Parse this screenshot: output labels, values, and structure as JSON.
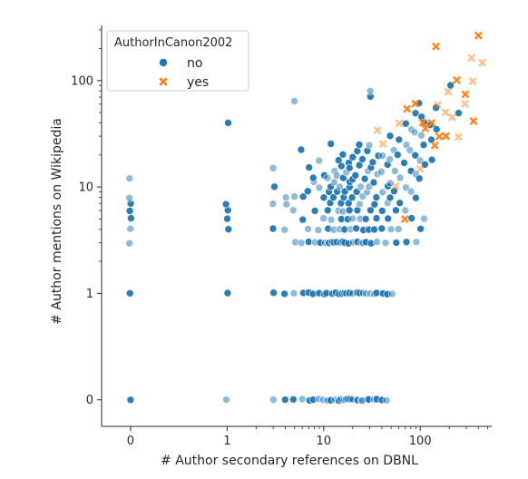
{
  "chart_data": {
    "type": "scatter",
    "title": "",
    "xlabel": "# Author secondary references on DBNL",
    "ylabel": "# Author mentions on Wikipedia",
    "xscale": "symlog",
    "yscale": "symlog",
    "xlim": [
      -0.3,
      550
    ],
    "ylim": [
      -0.25,
      330
    ],
    "x_ticks": [
      {
        "value": 0,
        "label": "0"
      },
      {
        "value": 1,
        "label": "1"
      },
      {
        "value": 10,
        "label": "10"
      },
      {
        "value": 100,
        "label": "100"
      }
    ],
    "y_ticks": [
      {
        "value": 0,
        "label": "0"
      },
      {
        "value": 1,
        "label": "1"
      },
      {
        "value": 10,
        "label": "10"
      },
      {
        "value": 100,
        "label": "100"
      }
    ],
    "grid": false,
    "legend": {
      "title": "AuthorInCanon2002",
      "position": "top-left",
      "entries": [
        {
          "label": "no",
          "marker": "circle",
          "color": "#1f77b4"
        },
        {
          "label": "yes",
          "marker": "x",
          "color": "#ff7f0e"
        }
      ]
    },
    "series": [
      {
        "name": "no",
        "marker": "circle",
        "color": "#1f77b4",
        "points": [
          [
            0,
            0
          ],
          [
            0,
            1
          ],
          [
            0,
            3
          ],
          [
            0,
            4
          ],
          [
            0,
            5
          ],
          [
            0,
            6
          ],
          [
            0,
            7
          ],
          [
            0,
            8
          ],
          [
            0,
            12
          ],
          [
            1,
            0
          ],
          [
            1,
            1
          ],
          [
            1,
            4
          ],
          [
            1,
            5
          ],
          [
            1,
            6
          ],
          [
            1,
            7
          ],
          [
            1,
            40
          ],
          [
            3,
            0
          ],
          [
            3,
            1
          ],
          [
            3,
            4
          ],
          [
            3,
            7
          ],
          [
            3,
            10
          ],
          [
            3,
            15
          ],
          [
            4,
            0
          ],
          [
            4,
            1
          ],
          [
            4,
            4
          ],
          [
            4,
            7
          ],
          [
            4,
            8
          ],
          [
            5,
            0
          ],
          [
            5,
            1
          ],
          [
            5,
            3
          ],
          [
            5,
            6
          ],
          [
            5,
            8
          ],
          [
            5,
            65
          ],
          [
            6,
            0
          ],
          [
            6,
            1
          ],
          [
            6,
            3
          ],
          [
            6,
            5
          ],
          [
            6,
            8
          ],
          [
            6,
            22
          ],
          [
            7,
            0
          ],
          [
            7,
            1
          ],
          [
            7,
            3
          ],
          [
            7,
            4
          ],
          [
            7,
            9
          ],
          [
            7,
            15
          ],
          [
            8,
            0
          ],
          [
            8,
            1
          ],
          [
            8,
            3
          ],
          [
            8,
            6
          ],
          [
            8,
            11
          ],
          [
            8,
            12
          ],
          [
            9,
            0
          ],
          [
            9,
            1
          ],
          [
            9,
            3
          ],
          [
            9,
            4
          ],
          [
            9,
            10
          ],
          [
            9,
            18
          ],
          [
            10,
            0
          ],
          [
            10,
            1
          ],
          [
            10,
            3
          ],
          [
            10,
            5
          ],
          [
            10,
            8
          ],
          [
            10,
            13
          ],
          [
            11,
            0
          ],
          [
            11,
            1
          ],
          [
            11,
            3
          ],
          [
            11,
            4
          ],
          [
            11,
            6
          ],
          [
            11,
            9
          ],
          [
            11,
            12
          ],
          [
            12,
            0
          ],
          [
            12,
            1
          ],
          [
            12,
            3
          ],
          [
            12,
            5
          ],
          [
            12,
            7
          ],
          [
            12,
            10
          ],
          [
            12,
            25
          ],
          [
            13,
            0
          ],
          [
            13,
            1
          ],
          [
            13,
            3
          ],
          [
            13,
            4
          ],
          [
            13,
            8
          ],
          [
            13,
            11
          ],
          [
            13,
            14
          ],
          [
            14,
            0
          ],
          [
            14,
            1
          ],
          [
            14,
            3
          ],
          [
            14,
            6
          ],
          [
            14,
            9
          ],
          [
            14,
            13
          ],
          [
            14,
            18
          ],
          [
            15,
            0
          ],
          [
            15,
            1
          ],
          [
            15,
            3
          ],
          [
            15,
            4
          ],
          [
            15,
            5
          ],
          [
            15,
            7
          ],
          [
            15,
            10
          ],
          [
            15,
            16
          ],
          [
            16,
            0
          ],
          [
            16,
            1
          ],
          [
            16,
            3
          ],
          [
            16,
            6
          ],
          [
            16,
            8
          ],
          [
            16,
            12
          ],
          [
            16,
            20
          ],
          [
            17,
            0
          ],
          [
            17,
            1
          ],
          [
            17,
            3
          ],
          [
            17,
            4
          ],
          [
            17,
            9
          ],
          [
            17,
            14
          ],
          [
            18,
            0
          ],
          [
            18,
            1
          ],
          [
            18,
            3
          ],
          [
            18,
            5
          ],
          [
            18,
            7
          ],
          [
            18,
            10
          ],
          [
            18,
            17
          ],
          [
            19,
            0
          ],
          [
            19,
            1
          ],
          [
            19,
            4
          ],
          [
            19,
            6
          ],
          [
            19,
            11
          ],
          [
            19,
            15
          ],
          [
            20,
            0
          ],
          [
            20,
            1
          ],
          [
            20,
            3
          ],
          [
            20,
            5
          ],
          [
            20,
            8
          ],
          [
            20,
            12
          ],
          [
            20,
            19
          ],
          [
            22,
            0
          ],
          [
            22,
            1
          ],
          [
            22,
            3
          ],
          [
            22,
            4
          ],
          [
            22,
            6
          ],
          [
            22,
            9
          ],
          [
            22,
            13
          ],
          [
            22,
            22
          ],
          [
            24,
            0
          ],
          [
            24,
            1
          ],
          [
            24,
            3
          ],
          [
            24,
            5
          ],
          [
            24,
            7
          ],
          [
            24,
            10
          ],
          [
            24,
            16
          ],
          [
            24,
            25
          ],
          [
            26,
            0
          ],
          [
            26,
            1
          ],
          [
            26,
            3
          ],
          [
            26,
            4
          ],
          [
            26,
            8
          ],
          [
            26,
            12
          ],
          [
            26,
            18
          ],
          [
            28,
            0
          ],
          [
            28,
            1
          ],
          [
            28,
            3
          ],
          [
            28,
            5
          ],
          [
            28,
            9
          ],
          [
            28,
            14
          ],
          [
            28,
            22
          ],
          [
            30,
            0
          ],
          [
            30,
            1
          ],
          [
            30,
            3
          ],
          [
            30,
            4
          ],
          [
            30,
            6
          ],
          [
            30,
            10
          ],
          [
            30,
            15
          ],
          [
            30,
            25
          ],
          [
            30,
            70
          ],
          [
            30,
            80
          ],
          [
            33,
            0
          ],
          [
            33,
            1
          ],
          [
            33,
            4
          ],
          [
            33,
            7
          ],
          [
            33,
            11
          ],
          [
            33,
            17
          ],
          [
            36,
            0
          ],
          [
            36,
            1
          ],
          [
            36,
            3
          ],
          [
            36,
            5
          ],
          [
            36,
            8
          ],
          [
            36,
            13
          ],
          [
            36,
            20
          ],
          [
            40,
            0
          ],
          [
            40,
            1
          ],
          [
            40,
            4
          ],
          [
            40,
            6
          ],
          [
            40,
            9
          ],
          [
            40,
            14
          ],
          [
            40,
            20
          ],
          [
            45,
            0
          ],
          [
            45,
            1
          ],
          [
            45,
            3
          ],
          [
            45,
            5
          ],
          [
            45,
            7
          ],
          [
            45,
            10
          ],
          [
            45,
            16
          ],
          [
            50,
            1
          ],
          [
            50,
            4
          ],
          [
            50,
            8
          ],
          [
            50,
            11
          ],
          [
            50,
            18
          ],
          [
            50,
            30
          ],
          [
            55,
            3
          ],
          [
            55,
            6
          ],
          [
            55,
            9
          ],
          [
            55,
            14
          ],
          [
            55,
            22
          ],
          [
            60,
            4
          ],
          [
            60,
            7
          ],
          [
            60,
            12
          ],
          [
            60,
            20
          ],
          [
            60,
            28
          ],
          [
            70,
            3
          ],
          [
            70,
            6
          ],
          [
            70,
            10
          ],
          [
            70,
            17
          ],
          [
            70,
            25
          ],
          [
            70,
            40
          ],
          [
            80,
            5
          ],
          [
            80,
            9
          ],
          [
            80,
            14
          ],
          [
            80,
            22
          ],
          [
            80,
            35
          ],
          [
            90,
            3
          ],
          [
            90,
            8
          ],
          [
            90,
            13
          ],
          [
            90,
            20
          ],
          [
            90,
            33
          ],
          [
            90,
            50
          ],
          [
            100,
            4
          ],
          [
            100,
            12
          ],
          [
            100,
            18
          ],
          [
            100,
            30
          ],
          [
            100,
            45
          ],
          [
            100,
            62
          ],
          [
            110,
            5
          ],
          [
            110,
            16
          ],
          [
            110,
            25
          ],
          [
            110,
            40
          ],
          [
            130,
            18
          ],
          [
            130,
            28
          ],
          [
            130,
            38
          ],
          [
            150,
            35
          ],
          [
            150,
            55
          ],
          [
            200,
            90
          ],
          [
            250,
            50
          ]
        ]
      },
      {
        "name": "yes",
        "marker": "x",
        "color": "#ff7f0e",
        "points": [
          [
            35,
            34
          ],
          [
            40,
            25
          ],
          [
            55,
            10
          ],
          [
            60,
            40
          ],
          [
            70,
            5
          ],
          [
            75,
            55
          ],
          [
            90,
            60
          ],
          [
            100,
            15
          ],
          [
            110,
            40
          ],
          [
            115,
            35
          ],
          [
            130,
            40
          ],
          [
            140,
            25
          ],
          [
            150,
            60
          ],
          [
            150,
            210
          ],
          [
            160,
            30
          ],
          [
            180,
            50
          ],
          [
            180,
            30
          ],
          [
            200,
            80
          ],
          [
            210,
            45
          ],
          [
            240,
            100
          ],
          [
            250,
            30
          ],
          [
            300,
            75
          ],
          [
            300,
            60
          ],
          [
            340,
            165
          ],
          [
            340,
            100
          ],
          [
            350,
            42
          ],
          [
            400,
            270
          ],
          [
            440,
            150
          ]
        ]
      }
    ]
  }
}
